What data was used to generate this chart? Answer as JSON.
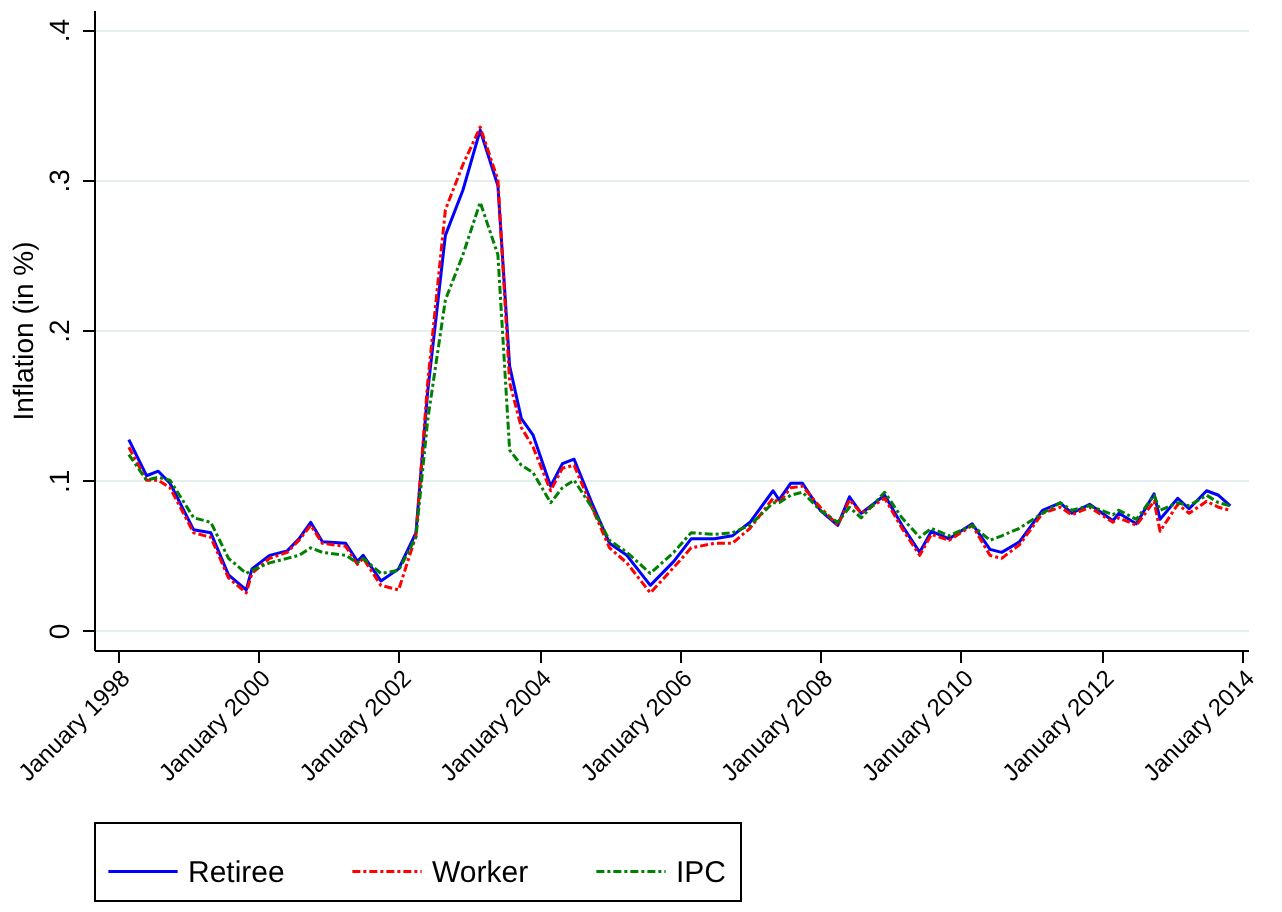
{
  "chart_data": {
    "type": "line",
    "ylabel": "Inflation (in %)",
    "x": [
      "1998-03",
      "1998-06",
      "1998-08",
      "1998-10",
      "1999-02",
      "1999-05",
      "1999-08",
      "1999-11",
      "1999-12",
      "2000-03",
      "2000-06",
      "2000-08",
      "2000-10",
      "2000-12",
      "2001-04",
      "2001-06",
      "2001-07",
      "2001-10",
      "2002-01",
      "2002-04",
      "2002-06",
      "2002-09",
      "2002-12",
      "2003-03",
      "2003-06",
      "2003-08",
      "2003-10",
      "2003-12",
      "2004-03",
      "2004-05",
      "2004-07",
      "2004-10",
      "2005-01",
      "2005-04",
      "2005-08",
      "2005-12",
      "2006-03",
      "2006-07",
      "2006-10",
      "2007-01",
      "2007-05",
      "2007-06",
      "2007-08",
      "2007-10",
      "2008-01",
      "2008-04",
      "2008-06",
      "2008-08",
      "2008-12",
      "2009-03",
      "2009-06",
      "2009-08",
      "2009-11",
      "2010-03",
      "2010-06",
      "2010-08",
      "2010-11",
      "2011-03",
      "2011-06",
      "2011-08",
      "2011-11",
      "2012-03",
      "2012-04",
      "2012-07",
      "2012-10",
      "2012-11",
      "2013-02",
      "2013-04",
      "2013-07",
      "2013-09",
      "2013-11"
    ],
    "series": [
      {
        "name": "Retiree",
        "color": "#0000ff",
        "line_style": "solid",
        "values": [
          0.127,
          0.103,
          0.106,
          0.098,
          0.067,
          0.065,
          0.037,
          0.027,
          0.041,
          0.05,
          0.053,
          0.061,
          0.072,
          0.059,
          0.058,
          0.046,
          0.05,
          0.033,
          0.041,
          0.065,
          0.159,
          0.263,
          0.293,
          0.333,
          0.296,
          0.176,
          0.141,
          0.13,
          0.096,
          0.111,
          0.114,
          0.085,
          0.058,
          0.05,
          0.03,
          0.046,
          0.061,
          0.061,
          0.063,
          0.072,
          0.093,
          0.087,
          0.098,
          0.098,
          0.08,
          0.07,
          0.089,
          0.078,
          0.09,
          0.07,
          0.052,
          0.066,
          0.061,
          0.071,
          0.054,
          0.052,
          0.059,
          0.08,
          0.085,
          0.078,
          0.084,
          0.073,
          0.078,
          0.071,
          0.091,
          0.074,
          0.088,
          0.081,
          0.093,
          0.09,
          0.083
        ]
      },
      {
        "name": "Worker",
        "color": "#ff0000",
        "line_style": "dashed",
        "values": [
          0.122,
          0.1,
          0.1,
          0.095,
          0.065,
          0.062,
          0.035,
          0.025,
          0.038,
          0.048,
          0.052,
          0.06,
          0.07,
          0.058,
          0.056,
          0.044,
          0.048,
          0.03,
          0.027,
          0.063,
          0.165,
          0.28,
          0.31,
          0.335,
          0.3,
          0.165,
          0.135,
          0.122,
          0.093,
          0.108,
          0.11,
          0.082,
          0.055,
          0.045,
          0.025,
          0.042,
          0.055,
          0.058,
          0.058,
          0.068,
          0.088,
          0.085,
          0.095,
          0.096,
          0.082,
          0.07,
          0.087,
          0.078,
          0.088,
          0.068,
          0.05,
          0.064,
          0.06,
          0.07,
          0.05,
          0.048,
          0.057,
          0.078,
          0.082,
          0.077,
          0.082,
          0.072,
          0.075,
          0.07,
          0.086,
          0.066,
          0.084,
          0.078,
          0.086,
          0.082,
          0.08
        ]
      },
      {
        "name": "IPC",
        "color": "#008000",
        "line_style": "dashed",
        "values": [
          0.117,
          0.1,
          0.102,
          0.1,
          0.075,
          0.072,
          0.048,
          0.038,
          0.04,
          0.045,
          0.048,
          0.05,
          0.055,
          0.052,
          0.05,
          0.045,
          0.048,
          0.038,
          0.04,
          0.062,
          0.14,
          0.22,
          0.25,
          0.285,
          0.25,
          0.12,
          0.11,
          0.105,
          0.085,
          0.095,
          0.1,
          0.082,
          0.06,
          0.052,
          0.038,
          0.052,
          0.065,
          0.064,
          0.065,
          0.07,
          0.085,
          0.085,
          0.09,
          0.092,
          0.08,
          0.072,
          0.082,
          0.075,
          0.092,
          0.075,
          0.062,
          0.068,
          0.063,
          0.07,
          0.06,
          0.063,
          0.068,
          0.078,
          0.085,
          0.08,
          0.083,
          0.077,
          0.08,
          0.074,
          0.09,
          0.08,
          0.085,
          0.083,
          0.09,
          0.085,
          0.083
        ]
      }
    ],
    "xlim": [
      "1997-09",
      "2014-02"
    ],
    "xticks": [
      {
        "value": "1998-01",
        "label": "January 1998"
      },
      {
        "value": "2000-01",
        "label": "January 2000"
      },
      {
        "value": "2002-01",
        "label": "January 2002"
      },
      {
        "value": "2004-01",
        "label": "January 2004"
      },
      {
        "value": "2006-01",
        "label": "January 2006"
      },
      {
        "value": "2008-01",
        "label": "January 2008"
      },
      {
        "value": "2010-01",
        "label": "January 2010"
      },
      {
        "value": "2012-01",
        "label": "January 2012"
      },
      {
        "value": "2014-01",
        "label": "January 2014"
      }
    ],
    "ylim": [
      -0.013,
      0.413
    ],
    "yticks": [
      {
        "value": 0,
        "label": "0"
      },
      {
        "value": 0.1,
        "label": ".1"
      },
      {
        "value": 0.2,
        "label": ".2"
      },
      {
        "value": 0.3,
        "label": ".3"
      },
      {
        "value": 0.4,
        "label": ".4"
      }
    ],
    "grid": "y",
    "legend": "bottom",
    "marker": "none"
  }
}
